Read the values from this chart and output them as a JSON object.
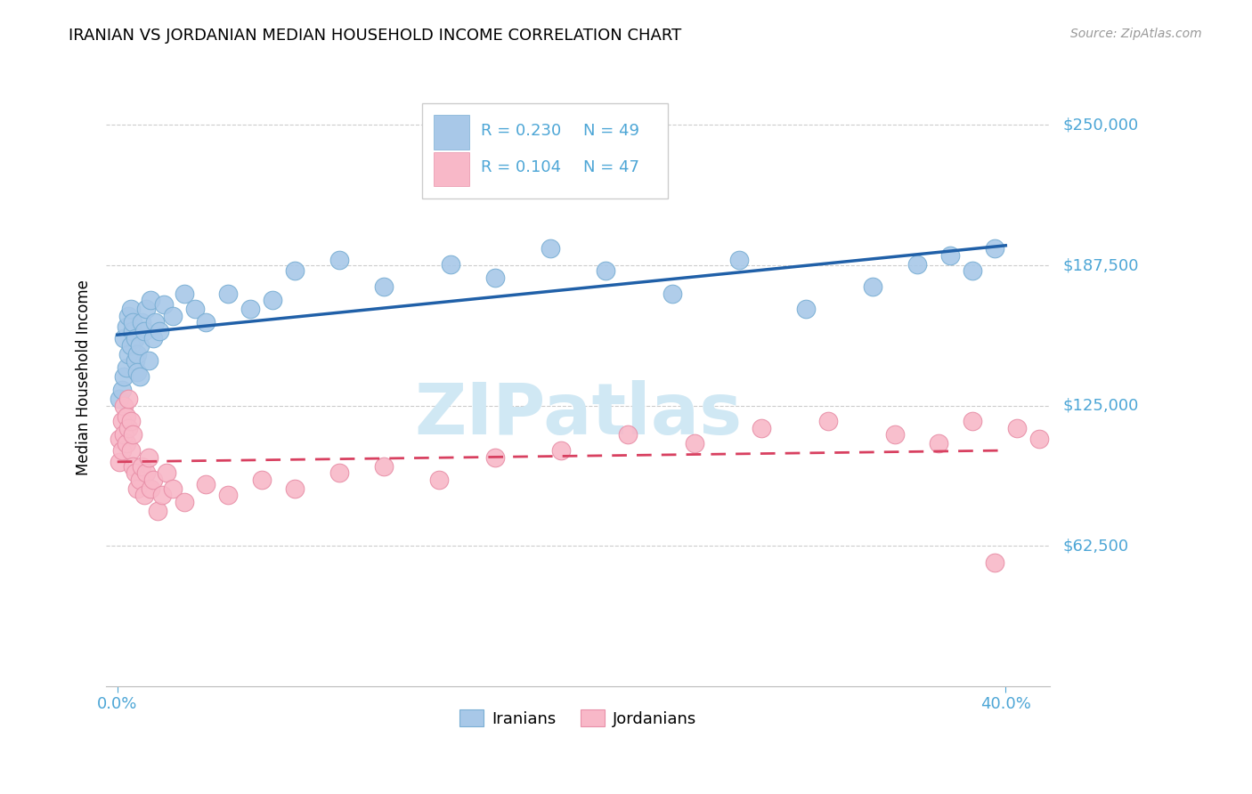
{
  "title": "IRANIAN VS JORDANIAN MEDIAN HOUSEHOLD INCOME CORRELATION CHART",
  "source": "Source: ZipAtlas.com",
  "ylabel": "Median Household Income",
  "ytick_labels": [
    "$62,500",
    "$125,000",
    "$187,500",
    "$250,000"
  ],
  "ytick_values": [
    62500,
    125000,
    187500,
    250000
  ],
  "ylim": [
    0,
    275000
  ],
  "xlim": [
    -0.005,
    0.42
  ],
  "iranian_R": "0.230",
  "iranian_N": "49",
  "jordanian_R": "0.104",
  "jordanian_N": "47",
  "iranian_color": "#a8c8e8",
  "iranian_edge_color": "#7aafd4",
  "iranian_line_color": "#2060a8",
  "jordanian_color": "#f8b8c8",
  "jordanian_edge_color": "#e890a8",
  "jordanian_line_color": "#d84060",
  "watermark_color": "#d0e8f4",
  "background_color": "#ffffff",
  "legend_color": "#4da6d6",
  "source_color": "#999999",
  "iranian_x": [
    0.001,
    0.002,
    0.003,
    0.003,
    0.004,
    0.004,
    0.005,
    0.005,
    0.006,
    0.006,
    0.007,
    0.007,
    0.008,
    0.008,
    0.009,
    0.009,
    0.01,
    0.01,
    0.011,
    0.012,
    0.013,
    0.014,
    0.015,
    0.016,
    0.017,
    0.019,
    0.021,
    0.025,
    0.03,
    0.035,
    0.04,
    0.05,
    0.06,
    0.07,
    0.08,
    0.1,
    0.12,
    0.15,
    0.17,
    0.195,
    0.22,
    0.25,
    0.28,
    0.31,
    0.34,
    0.36,
    0.375,
    0.385,
    0.395
  ],
  "iranian_y": [
    128000,
    132000,
    138000,
    155000,
    142000,
    160000,
    148000,
    165000,
    152000,
    168000,
    158000,
    162000,
    145000,
    155000,
    148000,
    140000,
    152000,
    138000,
    162000,
    158000,
    168000,
    145000,
    172000,
    155000,
    162000,
    158000,
    170000,
    165000,
    175000,
    168000,
    162000,
    175000,
    168000,
    172000,
    185000,
    190000,
    178000,
    188000,
    182000,
    195000,
    185000,
    175000,
    190000,
    168000,
    178000,
    188000,
    192000,
    185000,
    195000
  ],
  "jordanian_x": [
    0.001,
    0.001,
    0.002,
    0.002,
    0.003,
    0.003,
    0.004,
    0.004,
    0.005,
    0.005,
    0.006,
    0.006,
    0.007,
    0.007,
    0.008,
    0.009,
    0.01,
    0.011,
    0.012,
    0.013,
    0.014,
    0.015,
    0.016,
    0.018,
    0.02,
    0.022,
    0.025,
    0.03,
    0.04,
    0.05,
    0.065,
    0.08,
    0.1,
    0.12,
    0.145,
    0.17,
    0.2,
    0.23,
    0.26,
    0.29,
    0.32,
    0.35,
    0.37,
    0.385,
    0.395,
    0.405,
    0.415
  ],
  "jordanian_y": [
    100000,
    110000,
    105000,
    118000,
    112000,
    125000,
    108000,
    120000,
    115000,
    128000,
    118000,
    105000,
    98000,
    112000,
    95000,
    88000,
    92000,
    98000,
    85000,
    95000,
    102000,
    88000,
    92000,
    78000,
    85000,
    95000,
    88000,
    82000,
    90000,
    85000,
    92000,
    88000,
    95000,
    98000,
    92000,
    102000,
    105000,
    112000,
    108000,
    115000,
    118000,
    112000,
    108000,
    118000,
    55000,
    115000,
    110000
  ]
}
